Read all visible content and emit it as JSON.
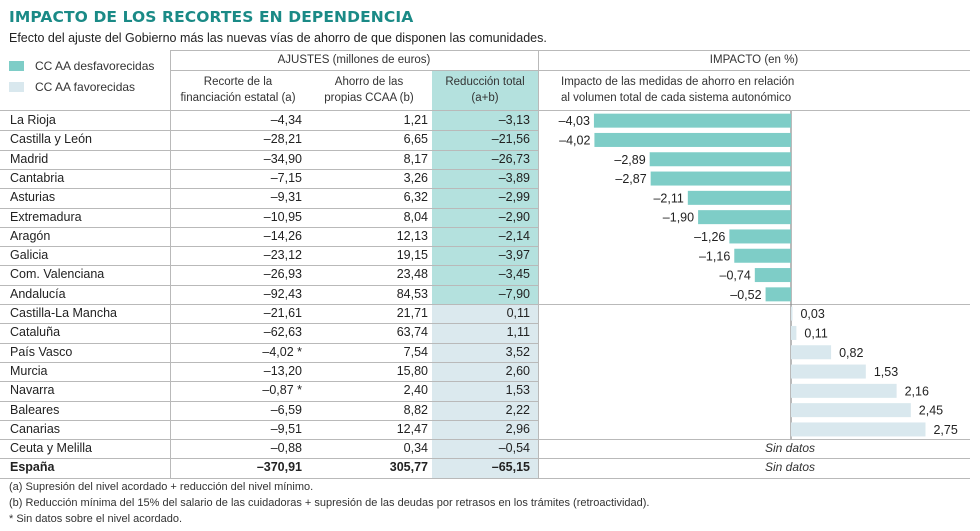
{
  "header": {
    "title": "IMPACTO DE LOS RECORTES EN DEPENDENCIA",
    "subtitle": "Efecto del ajuste del Gobierno más las nuevas vías de ahorro de que disponen las comunidades."
  },
  "legend": [
    {
      "label": "CC AA desfavorecidas",
      "color": "#7ecdc7"
    },
    {
      "label": "CC AA favorecidas",
      "color": "#d9e8ee"
    }
  ],
  "columns": {
    "ajustes_group": "AJUSTES (millones de euros)",
    "impacto_group": "IMPACTO (en %)",
    "col_a_line1": "Recorte de la",
    "col_a_line2": "financiación estatal (a)",
    "col_b_line1": "Ahorro de las",
    "col_b_line2": "propias CCAA (b)",
    "col_total_line1": "Reducción total",
    "col_total_line2": "(a+b)",
    "impacto_desc_line1": "Impacto de las medidas de ahorro en relación",
    "impacto_desc_line2": "al volumen total de cada sistema autonómico"
  },
  "colors": {
    "desfavorecidas": "#7ecdc7",
    "favorecidas": "#d9e8ee",
    "total_col_desfavorecidas": "#b4e1de",
    "total_col_favorecidas": "#dbe9ee",
    "title": "#1a8a86"
  },
  "rows": [
    {
      "name": "La Rioja",
      "a": "–4,34",
      "b": "1,21",
      "total": "–3,13",
      "impact_label": "–4,03",
      "group": "desfavorecidas"
    },
    {
      "name": "Castilla y León",
      "a": "–28,21",
      "b": "6,65",
      "total": "–21,56",
      "impact_label": "–4,02",
      "group": "desfavorecidas"
    },
    {
      "name": "Madrid",
      "a": "–34,90",
      "b": "8,17",
      "total": "–26,73",
      "impact_label": "–2,89",
      "group": "desfavorecidas"
    },
    {
      "name": "Cantabria",
      "a": "–7,15",
      "b": "3,26",
      "total": "–3,89",
      "impact_label": "–2,87",
      "group": "desfavorecidas"
    },
    {
      "name": "Asturias",
      "a": "–9,31",
      "b": "6,32",
      "total": "–2,99",
      "impact_label": "–2,11",
      "group": "desfavorecidas"
    },
    {
      "name": "Extremadura",
      "a": "–10,95",
      "b": "8,04",
      "total": "–2,90",
      "impact_label": "–1,90",
      "group": "desfavorecidas"
    },
    {
      "name": "Aragón",
      "a": "–14,26",
      "b": "12,13",
      "total": "–2,14",
      "impact_label": "–1,26",
      "group": "desfavorecidas"
    },
    {
      "name": "Galicia",
      "a": "–23,12",
      "b": "19,15",
      "total": "–3,97",
      "impact_label": "–1,16",
      "group": "desfavorecidas"
    },
    {
      "name": "Com. Valenciana",
      "a": "–26,93",
      "b": "23,48",
      "total": "–3,45",
      "impact_label": "–0,74",
      "group": "desfavorecidas"
    },
    {
      "name": "Andalucía",
      "a": "–92,43",
      "b": "84,53",
      "total": "–7,90",
      "impact_label": "–0,52",
      "group": "desfavorecidas"
    },
    {
      "name": "Castilla-La Mancha",
      "a": "–21,61",
      "b": "21,71",
      "total": "0,11",
      "impact_label": "0,03",
      "group": "favorecidas"
    },
    {
      "name": "Cataluña",
      "a": "–62,63",
      "b": "63,74",
      "total": "1,11",
      "impact_label": "0,11",
      "group": "favorecidas"
    },
    {
      "name": "País Vasco",
      "a": "–4,02 *",
      "b": "7,54",
      "total": "3,52",
      "impact_label": "0,82",
      "group": "favorecidas"
    },
    {
      "name": "Murcia",
      "a": "–13,20",
      "b": "15,80",
      "total": "2,60",
      "impact_label": "1,53",
      "group": "favorecidas"
    },
    {
      "name": "Navarra",
      "a": "–0,87 *",
      "b": "2,40",
      "total": "1,53",
      "impact_label": "2,16",
      "group": "favorecidas"
    },
    {
      "name": "Baleares",
      "a": "–6,59",
      "b": "8,82",
      "total": "2,22",
      "impact_label": "2,45",
      "group": "favorecidas"
    },
    {
      "name": "Canarias",
      "a": "–9,51",
      "b": "12,47",
      "total": "2,96",
      "impact_label": "2,75",
      "group": "favorecidas"
    },
    {
      "name": "Ceuta y Melilla",
      "a": "–0,88",
      "b": "0,34",
      "total": "–0,54",
      "impact_label": "Sin datos",
      "group": "favorecidas"
    },
    {
      "name": "España",
      "a": "–370,91",
      "b": "305,77",
      "total": "–65,15",
      "impact_label": "Sin datos",
      "group": "total"
    }
  ],
  "footnotes": [
    "(a) Supresión del nivel acordado + reducción del nivel mínimo.",
    "(b) Reducción mínima del 15% del salario de las cuidadoras + supresión de las deudas por retrasos en los trámites (retroactividad).",
    "* Sin datos sobre el nivel acordado."
  ],
  "chart_data": {
    "type": "bar",
    "orientation": "horizontal",
    "title": "IMPACTO (en %)",
    "subtitle": "Impacto de las medidas de ahorro en relación al volumen total de cada sistema autonómico",
    "xlabel": "",
    "ylabel": "",
    "xlim": [
      -4.03,
      2.75
    ],
    "grid": false,
    "legend": "top-left",
    "categories": [
      "La Rioja",
      "Castilla y León",
      "Madrid",
      "Cantabria",
      "Asturias",
      "Extremadura",
      "Aragón",
      "Galicia",
      "Com. Valenciana",
      "Andalucía",
      "Castilla-La Mancha",
      "Cataluña",
      "País Vasco",
      "Murcia",
      "Navarra",
      "Baleares",
      "Canarias",
      "Ceuta y Melilla",
      "España"
    ],
    "values": [
      -4.03,
      -4.02,
      -2.89,
      -2.87,
      -2.11,
      -1.9,
      -1.26,
      -1.16,
      -0.74,
      -0.52,
      0.03,
      0.11,
      0.82,
      1.53,
      2.16,
      2.45,
      2.75,
      null,
      null
    ],
    "series": [
      {
        "name": "CC AA desfavorecidas",
        "values": [
          -4.03,
          -4.02,
          -2.89,
          -2.87,
          -2.11,
          -1.9,
          -1.26,
          -1.16,
          -0.74,
          -0.52,
          null,
          null,
          null,
          null,
          null,
          null,
          null,
          null,
          null
        ]
      },
      {
        "name": "CC AA favorecidas",
        "values": [
          null,
          null,
          null,
          null,
          null,
          null,
          null,
          null,
          null,
          null,
          0.03,
          0.11,
          0.82,
          1.53,
          2.16,
          2.45,
          2.75,
          null,
          null
        ]
      }
    ],
    "annotations": [
      "Sin datos",
      "Sin datos"
    ]
  }
}
